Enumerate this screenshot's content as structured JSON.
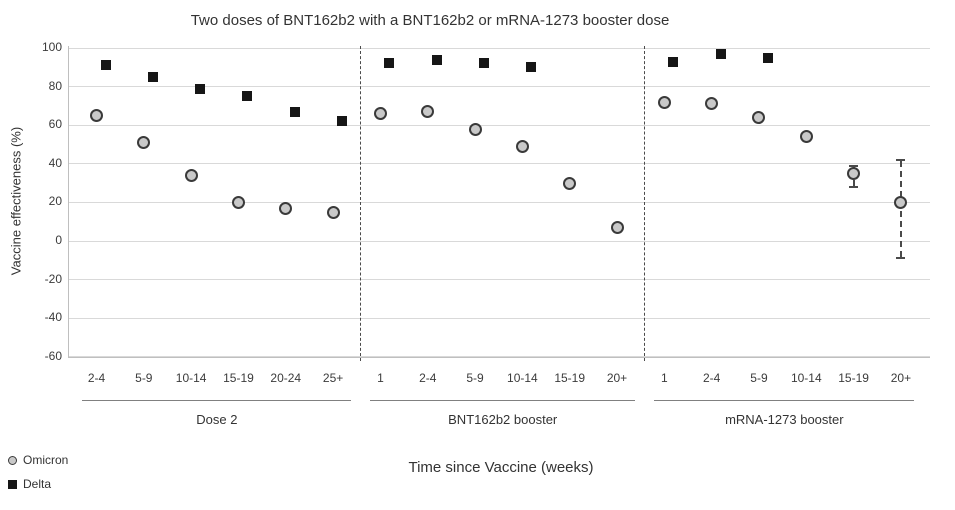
{
  "chart_data": {
    "type": "scatter",
    "title": "Two doses of BNT162b2 with a BNT162b2 or mRNA-1273 booster dose",
    "xlabel": "Time since Vaccine (weeks)",
    "ylabel": "Vaccine effectiveness (%)",
    "ylim": [
      -60,
      100
    ],
    "yticks": [
      100,
      80,
      60,
      40,
      20,
      0,
      -20,
      -40,
      -60
    ],
    "grid": true,
    "legend_position": "bottom-left",
    "legend": [
      {
        "name": "Omicron",
        "marker": "circle",
        "fill": "#c9c9c9",
        "stroke": "#3a3a3a"
      },
      {
        "name": "Delta",
        "marker": "square",
        "fill": "#161616",
        "stroke": "#161616"
      }
    ],
    "colors": {
      "gridline": "#d9d9d9",
      "axis_line": "#bfbfbf",
      "text": "#3b3b3b",
      "separator": "#4a4a4a",
      "group_line": "#808080",
      "error_bar": "#4a4a4a"
    },
    "groups": [
      {
        "label": "Dose 2",
        "categories": [
          "2-4",
          "5-9",
          "10-14",
          "15-19",
          "20-24",
          "25+"
        ],
        "series": [
          {
            "name": "Omicron",
            "values": [
              65,
              51,
              34,
              20,
              17,
              15
            ]
          },
          {
            "name": "Delta",
            "values": [
              91,
              85,
              79,
              75,
              67,
              62
            ]
          }
        ]
      },
      {
        "label": "BNT162b2 booster",
        "categories": [
          "1",
          "2-4",
          "5-9",
          "10-14",
          "15-19",
          "20+"
        ],
        "series": [
          {
            "name": "Omicron",
            "values": [
              66,
              67,
              58,
              49,
              30,
              7
            ]
          },
          {
            "name": "Delta",
            "values": [
              92,
              94,
              92,
              90,
              null,
              null
            ]
          }
        ]
      },
      {
        "label": "mRNA-1273 booster",
        "categories": [
          "1",
          "2-4",
          "5-9",
          "10-14",
          "15-19",
          "20+"
        ],
        "series": [
          {
            "name": "Omicron",
            "values": [
              72,
              71,
              64,
              54,
              35,
              20
            ]
          },
          {
            "name": "Delta",
            "values": [
              93,
              97,
              95,
              null,
              null,
              null
            ]
          }
        ],
        "error_bars": [
          {
            "series": "Omicron",
            "category": "15-19",
            "low": 28,
            "high": 39
          },
          {
            "series": "Omicron",
            "category": "20+",
            "low": -9,
            "high": 42
          }
        ]
      }
    ]
  }
}
